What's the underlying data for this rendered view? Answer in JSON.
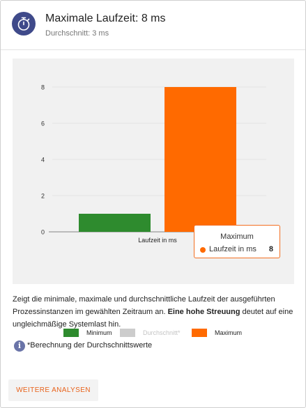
{
  "header": {
    "title": "Maximale Laufzeit: 8 ms",
    "subtitle": "Durchschnitt: 3 ms",
    "icon": "stopwatch-icon"
  },
  "chart_data": {
    "type": "bar",
    "categories": [
      "Laufzeit in ms"
    ],
    "xlabel": "",
    "ylabel": "",
    "ylim": [
      0,
      8
    ],
    "yticks": [
      0,
      2,
      4,
      6,
      8
    ],
    "grid": true,
    "legend_position": "bottom",
    "series": [
      {
        "name": "Minimum",
        "values": [
          1
        ],
        "color": "#2e8b2e",
        "visible": true
      },
      {
        "name": "Durchschnitt*",
        "values": [
          3
        ],
        "color": "#cccccc",
        "visible": false
      },
      {
        "name": "Maximum",
        "values": [
          8
        ],
        "color": "#ff6a00",
        "visible": true
      }
    ],
    "tooltip": {
      "title": "Maximum",
      "label": "Laufzeit in ms",
      "value": "8"
    }
  },
  "description": {
    "text_plain": "Zeigt die minimale, maximale und durchschnittliche Laufzeit der ausgeführten Prozessinstanzen im gewählten Zeitraum an. ",
    "text_bold": "Eine hohe Streuung",
    "text_end": " deutet auf eine ungleichmäßige Systemlast hin."
  },
  "footnote": {
    "icon": "info-icon",
    "icon_glyph": "i",
    "text": "*Berechnung der Durchschnittswerte"
  },
  "actions": {
    "more_label": "WEITERE ANALYSEN"
  }
}
